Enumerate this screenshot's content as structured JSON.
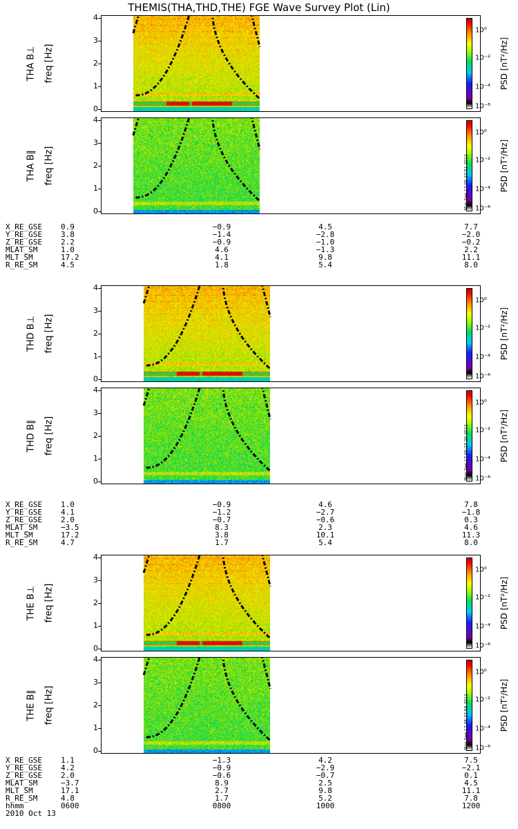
{
  "title": "THEMIS(THA,THD,THE) FGE Wave Survey Plot (Lin)",
  "date_label": "2010 Oct 13",
  "time_axis": {
    "label": "hhmm",
    "ticks": [
      "0600",
      "0800",
      "1000",
      "1200"
    ]
  },
  "colorbar": {
    "unit": "PSD [nT²/Hz]",
    "ticks": [
      "10⁰",
      "10⁻²",
      "10⁻⁴",
      "10⁻⁶"
    ],
    "scale": "log"
  },
  "stamps": {
    "tha": "Mon Sep 17 06:22:51 2012",
    "thd": "Mon Sep 17 06:23:20 2012",
    "the": "Mon Sep 17 06:22:58 2012"
  },
  "ephemeris_labels": [
    "X_RE_GSE",
    "Y_RE_GSE",
    "Z_RE_GSE",
    "MLAT_SM",
    "MLT_SM",
    "R_RE_SM"
  ],
  "chart_data": [
    {
      "type": "heatmap",
      "ylabel": "THA B⊥",
      "yunit": "freq [Hz]",
      "ylim": [
        0,
        4
      ],
      "yticks": [
        "0",
        "1",
        "2",
        "3",
        "4"
      ],
      "x_range": [
        "0600",
        "1200"
      ],
      "data_span": [
        "0630",
        "0830"
      ]
    },
    {
      "type": "heatmap",
      "ylabel": "THA B∥",
      "yunit": "freq [Hz]",
      "ylim": [
        0,
        4
      ],
      "yticks": [
        "0",
        "1",
        "2",
        "3",
        "4"
      ],
      "x_range": [
        "0600",
        "1200"
      ],
      "data_span": [
        "0630",
        "0830"
      ]
    },
    {
      "type": "heatmap",
      "ylabel": "THD B⊥",
      "yunit": "freq [Hz]",
      "ylim": [
        0,
        4
      ],
      "yticks": [
        "0",
        "1",
        "2",
        "3",
        "4"
      ],
      "x_range": [
        "0600",
        "1200"
      ],
      "data_span": [
        "0640",
        "0840"
      ]
    },
    {
      "type": "heatmap",
      "ylabel": "THD B∥",
      "yunit": "freq [Hz]",
      "ylim": [
        0,
        4
      ],
      "yticks": [
        "0",
        "1",
        "2",
        "3",
        "4"
      ],
      "x_range": [
        "0600",
        "1200"
      ],
      "data_span": [
        "0640",
        "0840"
      ]
    },
    {
      "type": "heatmap",
      "ylabel": "THE B⊥",
      "yunit": "freq [Hz]",
      "ylim": [
        0,
        4
      ],
      "yticks": [
        "0",
        "1",
        "2",
        "3",
        "4"
      ],
      "x_range": [
        "0600",
        "1200"
      ],
      "data_span": [
        "0640",
        "0840"
      ]
    },
    {
      "type": "heatmap",
      "ylabel": "THE B∥",
      "yunit": "freq [Hz]",
      "ylim": [
        0,
        4
      ],
      "yticks": [
        "0",
        "1",
        "2",
        "3",
        "4"
      ],
      "x_range": [
        "0600",
        "1200"
      ],
      "data_span": [
        "0640",
        "0840"
      ]
    }
  ],
  "ephemeris": [
    {
      "X_RE_GSE": [
        "0.9",
        "−0.9",
        "4.5",
        "7.7"
      ],
      "Y_RE_GSE": [
        "3.8",
        "−1.4",
        "−2.8",
        "−2.0"
      ],
      "Z_RE_GSE": [
        "2.2",
        "−0.9",
        "−1.0",
        "−0.2"
      ],
      "MLAT_SM": [
        "1.0",
        "4.6",
        "−1.3",
        "2.2"
      ],
      "MLT_SM": [
        "17.2",
        "4.1",
        "9.8",
        "11.1"
      ],
      "R_RE_SM": [
        "4.5",
        "1.8",
        "5.4",
        "8.0"
      ]
    },
    {
      "X_RE_GSE": [
        "1.0",
        "−0.9",
        "4.6",
        "7.8"
      ],
      "Y_RE_GSE": [
        "4.1",
        "−1.2",
        "−2.7",
        "−1.8"
      ],
      "Z_RE_GSE": [
        "2.0",
        "−0.7",
        "−0.6",
        "0.3"
      ],
      "MLAT_SM": [
        "−3.5",
        "8.3",
        "2.3",
        "4.6"
      ],
      "MLT_SM": [
        "17.2",
        "3.8",
        "10.1",
        "11.3"
      ],
      "R_RE_SM": [
        "4.7",
        "1.7",
        "5.4",
        "8.0"
      ]
    },
    {
      "X_RE_GSE": [
        "1.1",
        "−1.3",
        "4.2",
        "7.5"
      ],
      "Y_RE_GSE": [
        "4.2",
        "−0.9",
        "−2.9",
        "−2.1"
      ],
      "Z_RE_GSE": [
        "2.0",
        "−0.6",
        "−0.7",
        "0.1"
      ],
      "MLAT_SM": [
        "−3.7",
        "8.9",
        "2.5",
        "4.5"
      ],
      "MLT_SM": [
        "17.1",
        "2.7",
        "9.8",
        "11.1"
      ],
      "R_RE_SM": [
        "4.8",
        "1.7",
        "5.2",
        "7.8"
      ]
    }
  ]
}
